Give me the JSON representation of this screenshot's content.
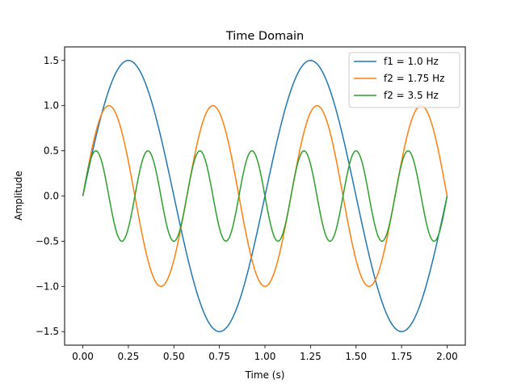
{
  "chart_data": {
    "type": "line",
    "title": "Time Domain",
    "xlabel": "Time (s)",
    "ylabel": "Amplitude",
    "xlim": [
      -0.1,
      2.1
    ],
    "ylim": [
      -1.65,
      1.65
    ],
    "grid": false,
    "legend_position": "top-right",
    "x_ticks": [
      "0.00",
      "0.25",
      "0.50",
      "0.75",
      "1.00",
      "1.25",
      "1.50",
      "1.75",
      "2.00"
    ],
    "x_tick_values": [
      0,
      0.25,
      0.5,
      0.75,
      1.0,
      1.25,
      1.5,
      1.75,
      2.0
    ],
    "y_ticks": [
      "1.5",
      "1.0",
      "0.5",
      "0.0",
      "−0.5",
      "−1.0",
      "−1.5"
    ],
    "y_tick_values": [
      1.5,
      1.0,
      0.5,
      0.0,
      -0.5,
      -1.0,
      -1.5
    ],
    "x_range": [
      0,
      2
    ],
    "series": [
      {
        "name": "f1 = 1.0 Hz",
        "amplitude": 1.5,
        "frequency": 1.0,
        "color": "#1f77b4"
      },
      {
        "name": "f2 = 1.75 Hz",
        "amplitude": 1.0,
        "frequency": 1.75,
        "color": "#ff7f0e"
      },
      {
        "name": "f2 = 3.5 Hz",
        "amplitude": 0.5,
        "frequency": 3.5,
        "color": "#2ca02c"
      }
    ]
  }
}
